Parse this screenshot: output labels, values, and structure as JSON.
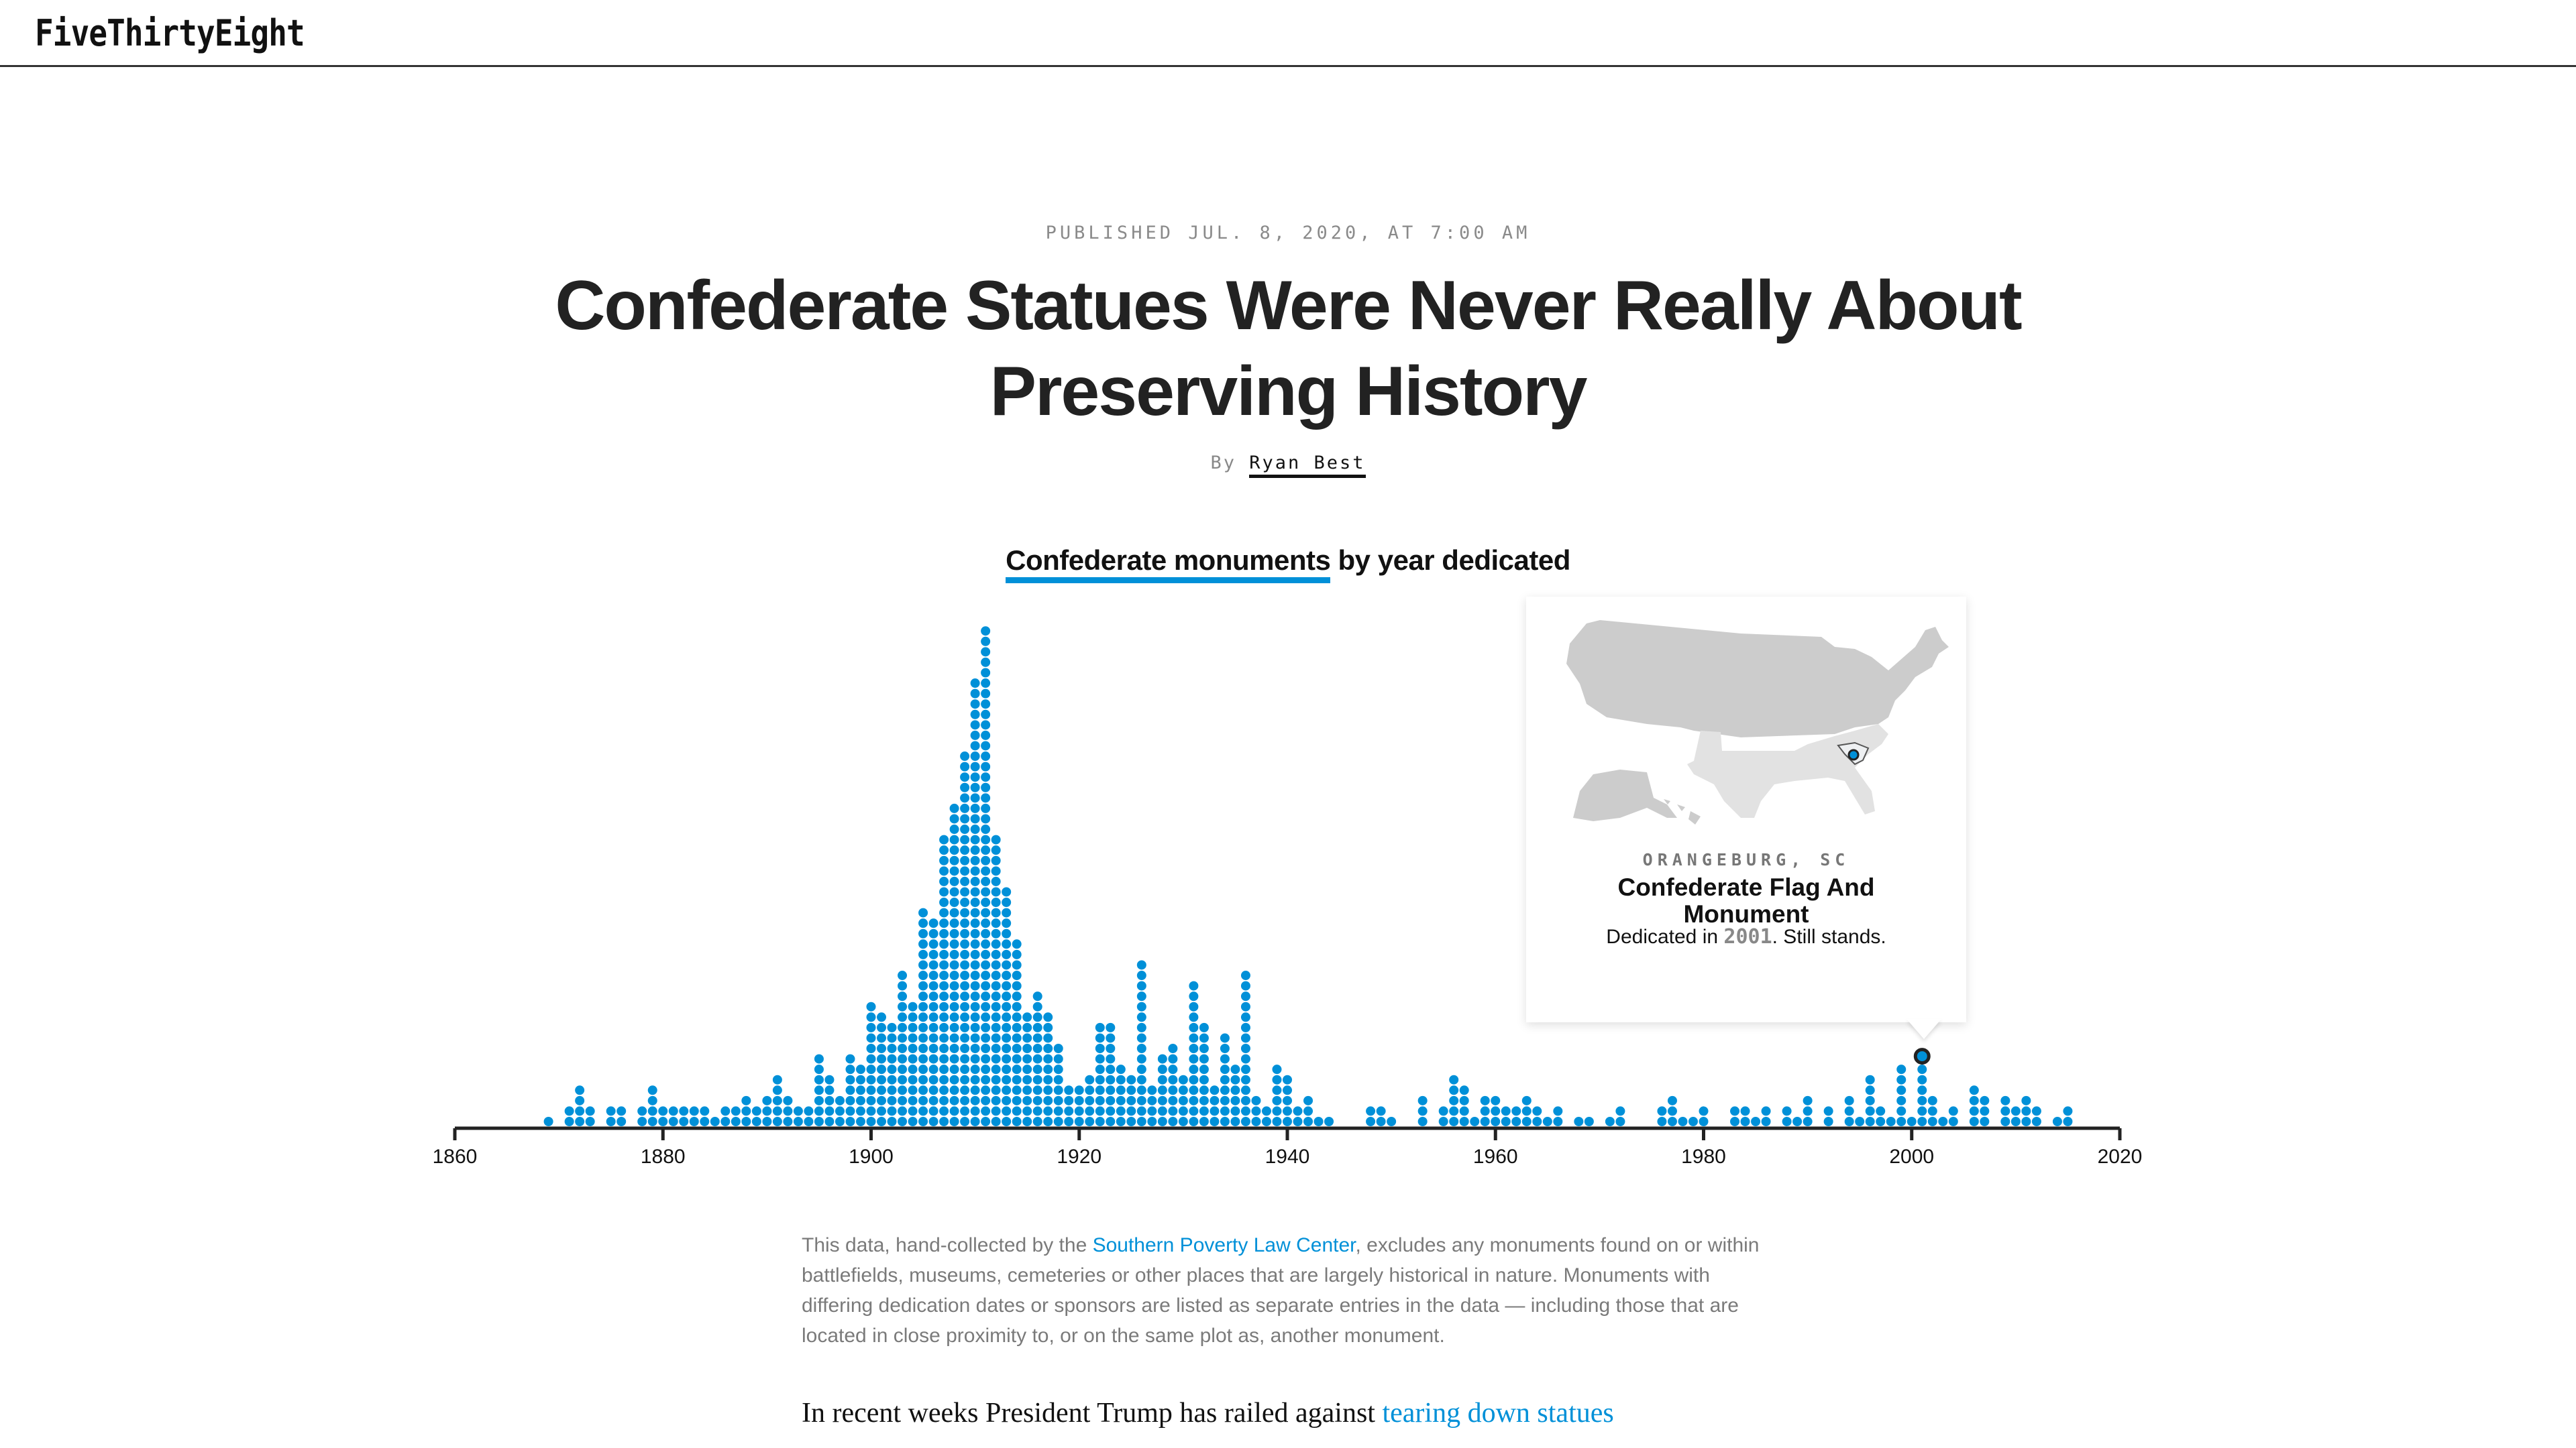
{
  "header": {
    "logo": "FiveThirtyEight"
  },
  "article": {
    "published": "PUBLISHED JUL. 8, 2020, AT 7:00 AM",
    "title": "Confederate Statues Were Never Really About Preserving History",
    "byline_prefix": "By",
    "author": "Ryan Best"
  },
  "chart_title": {
    "highlight": "Confederate monuments",
    "rest": " by year dedicated"
  },
  "colors": {
    "dot": "#0090d8",
    "axis": "#222222",
    "map_land": "#cccccc",
    "map_south": "#e2e2e2"
  },
  "tooltip": {
    "city": "ORANGEBURG, SC",
    "name": "Confederate Flag And Monument",
    "dedicated_prefix": "Dedicated in ",
    "year": "2001",
    "dedicated_suffix": ". Still stands.",
    "icon": "us-map-icon"
  },
  "chart_data": {
    "type": "scatter",
    "subtype": "dot-histogram",
    "title": "Confederate monuments by year dedicated",
    "xlabel": "",
    "ylabel": "",
    "xlim": [
      1860,
      2020
    ],
    "x_ticks": [
      "1860",
      "1880",
      "1900",
      "1920",
      "1940",
      "1960",
      "1980",
      "2000",
      "2020"
    ],
    "highlighted": {
      "year": 2001,
      "index": 7
    },
    "start_year": 1869,
    "counts": [
      1,
      0,
      2,
      4,
      2,
      0,
      2,
      2,
      0,
      2,
      4,
      2,
      2,
      2,
      2,
      2,
      1,
      2,
      2,
      3,
      2,
      3,
      5,
      3,
      2,
      2,
      7,
      5,
      3,
      7,
      6,
      12,
      11,
      10,
      15,
      12,
      21,
      20,
      28,
      31,
      36,
      43,
      48,
      28,
      23,
      18,
      11,
      13,
      11,
      8,
      4,
      4,
      5,
      10,
      10,
      6,
      5,
      16,
      4,
      7,
      8,
      5,
      14,
      10,
      4,
      9,
      6,
      15,
      3,
      2,
      6,
      5,
      2,
      3,
      1,
      1,
      0,
      0,
      0,
      2,
      2,
      1,
      0,
      0,
      3,
      0,
      2,
      5,
      4,
      1,
      3,
      3,
      2,
      2,
      3,
      2,
      1,
      2,
      0,
      1,
      1,
      0,
      1,
      2,
      0,
      0,
      0,
      2,
      3,
      1,
      1,
      2,
      0,
      0,
      2,
      2,
      1,
      2,
      0,
      2,
      1,
      3,
      0,
      2,
      0,
      3,
      1,
      5,
      2,
      1,
      6,
      1,
      7,
      3,
      1,
      2,
      0,
      4,
      3,
      0,
      3,
      2,
      3,
      2,
      0,
      1,
      2
    ]
  },
  "footnote": {
    "before": "This data, hand-collected by the ",
    "link": "Southern Poverty Law Center",
    "after": ", excludes any monuments found on or within battlefields, museums, cemeteries or other places that are largely historical in nature. Monuments with differing dedication dates or sponsors are listed as separate entries in the data — including those that are located in close proximity to, or on the same plot as, another monument."
  },
  "body": {
    "before": "In recent weeks President Trump has railed against ",
    "link": "tearing down statues"
  }
}
